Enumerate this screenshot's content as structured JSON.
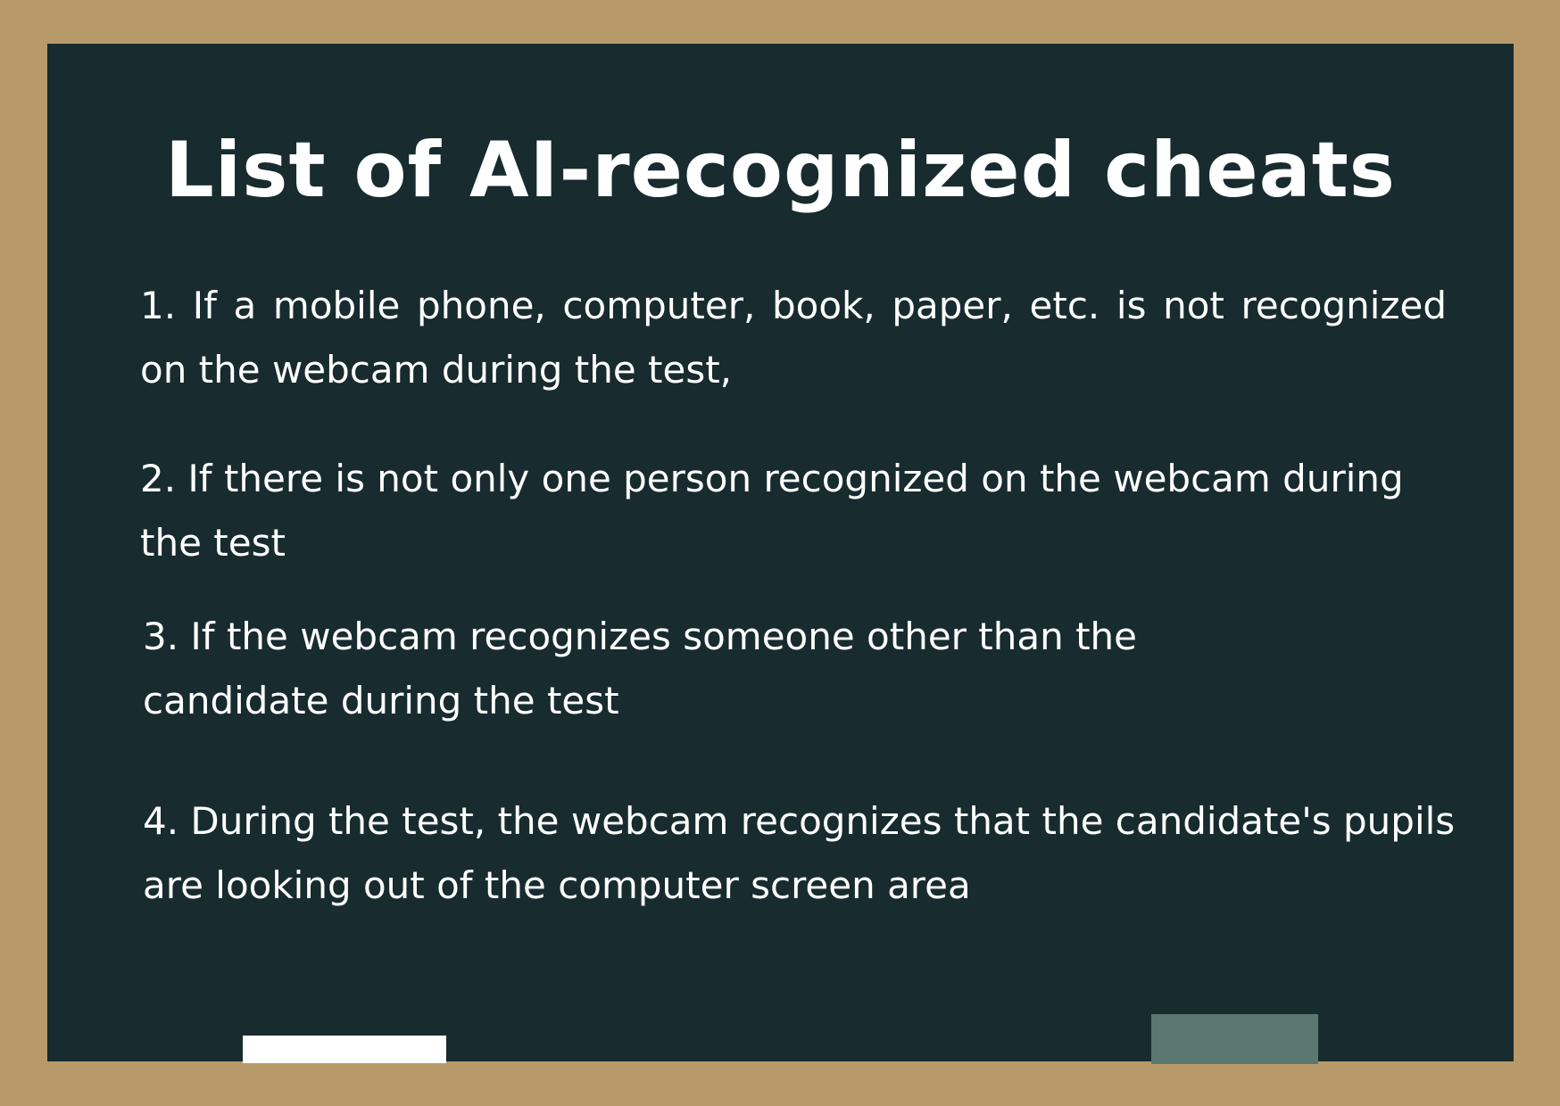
{
  "board": {
    "title": "List of AI-recognized cheats",
    "items": [
      "1. If a mobile phone, computer, book, paper, etc. is not recognized on the webcam during the test,",
      "2. If there is not only one person recognized on the webcam during the test",
      "3. If the webcam recognizes someone other than the candidate during the test",
      "4. During the test, the webcam recognizes that the candidate's pupils are looking out of the computer screen area"
    ]
  },
  "colors": {
    "frame": "#b89a6a",
    "board": "#182b2e",
    "text": "#ffffff",
    "chalk": "#ffffff",
    "eraser": "#5c7770"
  },
  "icons": {
    "chalk": "chalk-piece",
    "eraser": "eraser-block"
  }
}
